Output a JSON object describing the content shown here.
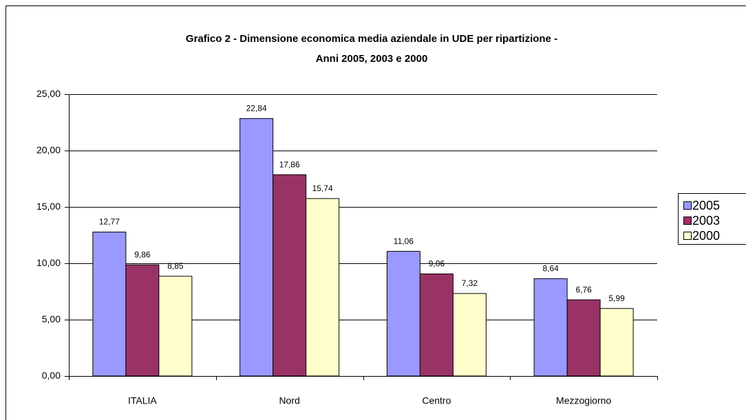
{
  "chart_data": {
    "type": "bar",
    "title": [
      "Grafico 2 - Dimensione economica media aziendale in UDE per ripartizione -",
      "Anni 2005, 2003 e 2000"
    ],
    "categories": [
      "ITALIA",
      "Nord",
      "Centro",
      "Mezzogiorno"
    ],
    "series": [
      {
        "name": "2005",
        "color": "#9999ff",
        "values": [
          12.77,
          22.84,
          11.06,
          8.64
        ],
        "value_labels": [
          "12,77",
          "22,84",
          "11,06",
          "8,64"
        ]
      },
      {
        "name": "2003",
        "color": "#993366",
        "values": [
          9.86,
          17.86,
          9.06,
          6.76
        ],
        "value_labels": [
          "9,86",
          "17,86",
          "9,06",
          "6,76"
        ]
      },
      {
        "name": "2000",
        "color": "#ffffcc",
        "values": [
          8.85,
          15.74,
          7.32,
          5.99
        ],
        "value_labels": [
          "8,85",
          "15,74",
          "7,32",
          "5,99"
        ]
      }
    ],
    "ylim": [
      0,
      25
    ],
    "yticks": [
      {
        "value": 0,
        "label": "0,00"
      },
      {
        "value": 5,
        "label": "5,00"
      },
      {
        "value": 10,
        "label": "10,00"
      },
      {
        "value": 15,
        "label": "15,00"
      },
      {
        "value": 20,
        "label": "20,00"
      },
      {
        "value": 25,
        "label": "25,00"
      }
    ],
    "grid": true,
    "legend": "right"
  }
}
